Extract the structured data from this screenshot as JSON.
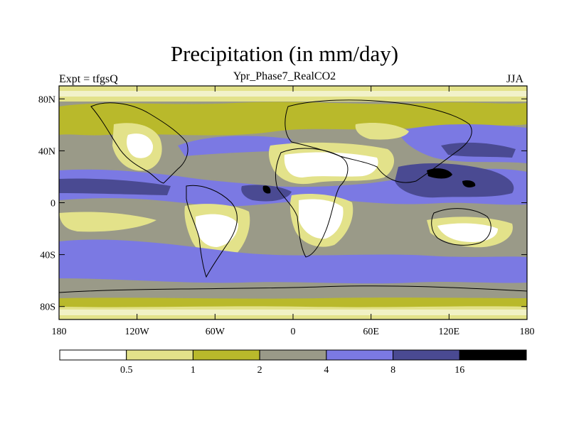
{
  "title": "Precipitation (in mm/day)",
  "subtitle": "Ypr_Phase7_RealCO2",
  "left_label": "Expt = tfgsQ",
  "right_label": "JJA",
  "y_axis": {
    "tick_labels": [
      "80N",
      "40N",
      "0",
      "40S",
      "80S"
    ],
    "tick_values": [
      80,
      40,
      0,
      -40,
      -80
    ],
    "range": [
      -90,
      90
    ]
  },
  "x_axis": {
    "tick_labels": [
      "180",
      "120W",
      "60W",
      "0",
      "60E",
      "120E",
      "180"
    ],
    "tick_values": [
      -180,
      -120,
      -60,
      0,
      60,
      120,
      180
    ],
    "range": [
      -180,
      180
    ]
  },
  "colorbar": {
    "labels": [
      "0.5",
      "1",
      "2",
      "4",
      "8",
      "16"
    ],
    "colors": [
      "#ffffff",
      "#e3e28a",
      "#b9b92b",
      "#9a9a88",
      "#7b79e3",
      "#4a4a92",
      "#000000"
    ]
  },
  "chart_data": {
    "type": "heatmap",
    "title": "Precipitation (in mm/day)",
    "subtitle": "Ypr_Phase7_RealCO2",
    "levels": [
      0.5,
      1,
      2,
      4,
      8,
      16
    ],
    "x_range": [
      -180,
      180
    ],
    "y_range": [
      -90,
      90
    ],
    "legend": "bottom"
  }
}
